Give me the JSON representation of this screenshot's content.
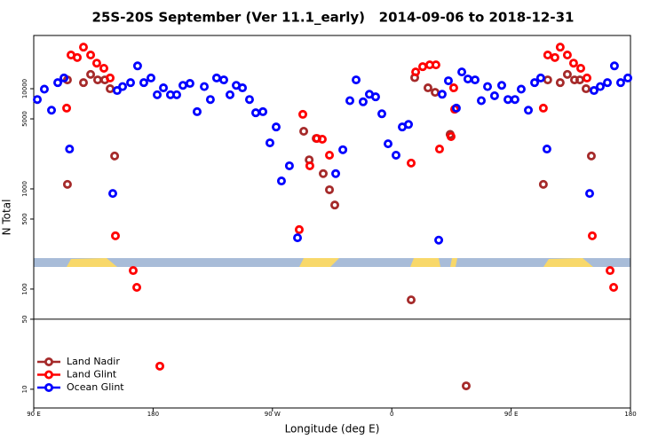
{
  "chart_data": {
    "type": "scatter",
    "title": "25S-20S September (Ver 11.1_early)   2014-09-06 to 2018-12-31",
    "xlabel": "Longitude (deg E)",
    "ylabel": "N Total",
    "xlim": [
      90,
      540
    ],
    "xticks": [
      {
        "value": 90,
        "label": "90 E"
      },
      180,
      {
        "value": 270,
        "label": "90 W"
      },
      {
        "value": 360,
        "label": "0"
      },
      {
        "value": 450,
        "label": "90 E"
      },
      {
        "value": 540,
        "label": "180"
      }
    ],
    "ylim": [
      6.5,
      34000
    ],
    "log_y": true,
    "yticks": [
      10,
      50,
      100,
      500,
      1000,
      5000,
      10000
    ],
    "reference_line": 50,
    "legend": "lower left",
    "series": [
      {
        "name": "Land Nadir",
        "color": "#a52a2a",
        "x": [
          115.4,
          115.4,
          127.5,
          132.9,
          138.2,
          143.6,
          147.6,
          151,
          293.6,
          297.7,
          303,
          308.3,
          313,
          317,
          374.6,
          377.3,
          387.3,
          392.7,
          404,
          416.1,
          474.3,
          477.6,
          487,
          492.4,
          497.8,
          501.8,
          506.5,
          510.5
        ],
        "values": [
          1110,
          12250,
          11500,
          13900,
          12250,
          12250,
          10000,
          2130,
          3760,
          1950,
          3190,
          1420,
          980,
          690,
          78,
          12900,
          10200,
          9200,
          3500,
          10.8,
          1110,
          12250,
          11500,
          13900,
          12250,
          12250,
          10000,
          2130
        ]
      },
      {
        "name": "Land Glint",
        "color": "#ff0000",
        "x": [
          114.8,
          118.1,
          122.8,
          127.5,
          132.9,
          137.5,
          142.9,
          147.6,
          151.6,
          165,
          167.7,
          185.1,
          290.2,
          292.9,
          298.2,
          303.6,
          307.6,
          313,
          374.6,
          378,
          383.3,
          388.6,
          393.3,
          396,
          404.7,
          406.7,
          407.4,
          474.3,
          477.6,
          483,
          487,
          492.4,
          497.1,
          502.5,
          507.2,
          511.2,
          524.6,
          527.3
        ],
        "values": [
          6400,
          21700,
          20500,
          26000,
          21700,
          18000,
          16000,
          12800,
          340,
          153,
          104,
          17,
          392,
          5550,
          1700,
          3190,
          3130,
          2170,
          1810,
          14700,
          16600,
          17300,
          17300,
          2500,
          3330,
          10200,
          6240,
          6400,
          21700,
          20500,
          26000,
          21700,
          18000,
          16000,
          12800,
          340,
          153,
          104
        ]
      },
      {
        "name": "Ocean Glint",
        "color": "#0000ff",
        "x": [
          92.7,
          98,
          103.4,
          108.1,
          112.8,
          117,
          149.6,
          152.9,
          157,
          163,
          168.3,
          173,
          178.4,
          183.1,
          187.8,
          193.1,
          197.8,
          202.5,
          207.8,
          213.2,
          218.6,
          223.2,
          227.9,
          233.3,
          238,
          242.7,
          247.4,
          252.7,
          257.4,
          262.8,
          268.1,
          272.8,
          276.8,
          282.8,
          288.9,
          317.7,
          323.1,
          328.4,
          333.1,
          338.4,
          343.1,
          347.8,
          352.5,
          357.2,
          363.2,
          367.9,
          372.6,
          395.4,
          398,
          402.7,
          408.7,
          412.8,
          417.4,
          422.8,
          427.5,
          432.2,
          437.5,
          442.9,
          447.6,
          452.9,
          457.6,
          463,
          467.7,
          472.3,
          477,
          509.2,
          512.5,
          517.2,
          522.6,
          527.9,
          532.6,
          538
        ],
        "values": [
          7800,
          9900,
          6100,
          11500,
          12800,
          2500,
          900,
          9600,
          10500,
          11500,
          16900,
          11500,
          12800,
          8700,
          10200,
          8700,
          8700,
          10800,
          11300,
          5900,
          10500,
          7800,
          12800,
          12250,
          8700,
          10800,
          10200,
          7800,
          5750,
          5900,
          2880,
          4150,
          1200,
          1700,
          325,
          1420,
          2460,
          7600,
          12250,
          7400,
          8800,
          8300,
          5620,
          2820,
          2170,
          4150,
          4400,
          308,
          8800,
          12000,
          6400,
          14700,
          12500,
          12250,
          7600,
          10500,
          8500,
          10800,
          7800,
          7800,
          9900,
          6100,
          11500,
          12800,
          2500,
          900,
          9600,
          10500,
          11500,
          16900,
          11500,
          12800
        ]
      }
    ]
  }
}
